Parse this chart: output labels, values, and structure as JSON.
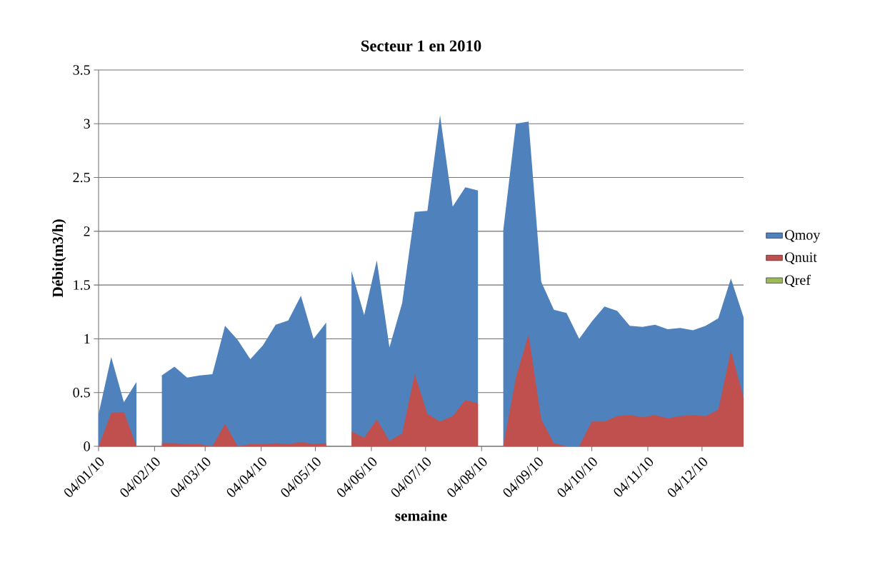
{
  "chart_data": {
    "type": "area",
    "title": "Secteur 1 en 2010",
    "xlabel": "semaine",
    "ylabel": "Débit(m3/h)",
    "x": [
      "2010-01-04",
      "2010-01-11",
      "2010-01-18",
      "2010-01-25",
      "2010-02-01",
      "2010-02-08",
      "2010-02-15",
      "2010-02-22",
      "2010-03-01",
      "2010-03-08",
      "2010-03-15",
      "2010-03-22",
      "2010-03-29",
      "2010-04-05",
      "2010-04-12",
      "2010-04-19",
      "2010-04-26",
      "2010-05-03",
      "2010-05-10",
      "2010-05-17",
      "2010-05-24",
      "2010-05-31",
      "2010-06-07",
      "2010-06-14",
      "2010-06-21",
      "2010-06-28",
      "2010-07-05",
      "2010-07-12",
      "2010-07-19",
      "2010-07-26",
      "2010-08-02",
      "2010-08-09",
      "2010-08-16",
      "2010-08-23",
      "2010-08-30",
      "2010-09-06",
      "2010-09-13",
      "2010-09-20",
      "2010-09-27",
      "2010-10-04",
      "2010-10-11",
      "2010-10-18",
      "2010-10-25",
      "2010-11-01",
      "2010-11-08",
      "2010-11-15",
      "2010-11-22",
      "2010-11-29",
      "2010-12-06",
      "2010-12-13",
      "2010-12-20",
      "2010-12-27"
    ],
    "series": [
      {
        "name": "Qmoy",
        "color": "#4f81bd",
        "values": [
          0.3,
          0.83,
          0.41,
          0.6,
          null,
          0.66,
          0.74,
          0.64,
          0.66,
          0.67,
          1.12,
          0.99,
          0.81,
          0.94,
          1.13,
          1.17,
          1.4,
          1.0,
          1.15,
          null,
          1.63,
          1.22,
          1.73,
          0.92,
          1.33,
          2.18,
          2.19,
          3.08,
          2.23,
          2.41,
          2.38,
          null,
          2.01,
          3.0,
          3.02,
          1.53,
          1.27,
          1.24,
          1.0,
          1.16,
          1.3,
          1.26,
          1.12,
          1.11,
          1.13,
          1.09,
          1.1,
          1.08,
          1.12,
          1.19,
          1.56,
          1.2
        ]
      },
      {
        "name": "Qnuit",
        "color": "#c0504d",
        "values": [
          0,
          0.31,
          0.32,
          0,
          null,
          0.03,
          0.03,
          0.02,
          0.02,
          0,
          0.21,
          0,
          0.02,
          0.02,
          0.03,
          0.02,
          0.04,
          0.02,
          0.03,
          null,
          0.14,
          0.08,
          0.25,
          0.05,
          0.12,
          0.67,
          0.3,
          0.23,
          0.28,
          0.43,
          0.4,
          null,
          0,
          0.64,
          1.04,
          0.25,
          0.03,
          0,
          0,
          0.23,
          0.23,
          0.28,
          0.29,
          0.27,
          0.29,
          0.26,
          0.28,
          0.29,
          0.28,
          0.34,
          0.89,
          0.45
        ]
      },
      {
        "name": "Qref",
        "color": "#9bbb59",
        "values": [
          null,
          null,
          null,
          null,
          null,
          null,
          null,
          null,
          null,
          null,
          null,
          null,
          null,
          null,
          null,
          null,
          null,
          null,
          null,
          null,
          null,
          null,
          null,
          null,
          null,
          null,
          null,
          null,
          null,
          null,
          null,
          null,
          null,
          null,
          null,
          null,
          null,
          null,
          null,
          null,
          null,
          null,
          null,
          null,
          null,
          null,
          null,
          null,
          null,
          null,
          null,
          null
        ]
      }
    ],
    "xlim": [
      "2010-01-04",
      "2010-12-27"
    ],
    "xticks": [
      {
        "value": "2010-01-04",
        "label": "04/01/10"
      },
      {
        "value": "2010-02-04",
        "label": "04/02/10"
      },
      {
        "value": "2010-03-04",
        "label": "04/03/10"
      },
      {
        "value": "2010-04-04",
        "label": "04/04/10"
      },
      {
        "value": "2010-05-04",
        "label": "04/05/10"
      },
      {
        "value": "2010-06-04",
        "label": "04/06/10"
      },
      {
        "value": "2010-07-04",
        "label": "04/07/10"
      },
      {
        "value": "2010-08-04",
        "label": "04/08/10"
      },
      {
        "value": "2010-09-04",
        "label": "04/09/10"
      },
      {
        "value": "2010-10-04",
        "label": "04/10/10"
      },
      {
        "value": "2010-11-04",
        "label": "04/11/10"
      },
      {
        "value": "2010-12-04",
        "label": "04/12/10"
      }
    ],
    "ylim": [
      0,
      3.5
    ],
    "yticks": [
      0,
      0.5,
      1,
      1.5,
      2,
      2.5,
      3,
      3.5
    ],
    "grid": "y",
    "legend": "right"
  }
}
